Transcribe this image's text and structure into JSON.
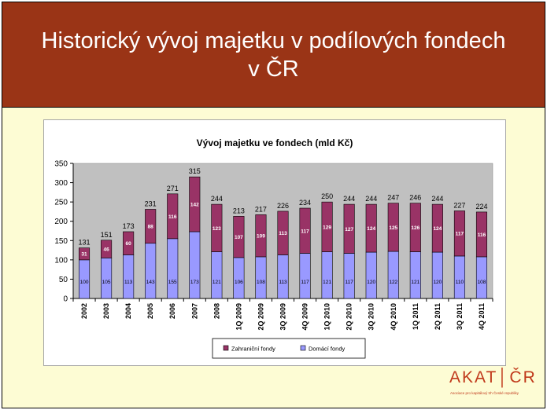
{
  "slide": {
    "title": "Historický vývoj majetku v podílových fondech v ČR",
    "header_color": "#9a3416",
    "background_color": "#fdfcd4"
  },
  "logo": {
    "text": "AKAT│ČR",
    "subtitle": "Asociace pro kapitálový trh České republiky",
    "color": "#c0391b"
  },
  "chart_data": {
    "type": "bar",
    "stacked": true,
    "title": "Vývoj majetku ve fondech (mld Kč)",
    "categories": [
      "2002",
      "2003",
      "2004",
      "2005",
      "2006",
      "2007",
      "2008",
      "1Q 2009",
      "2Q 2009",
      "3Q 2009",
      "4Q 2009",
      "1Q 2010",
      "2Q 2010",
      "3Q 2010",
      "4Q 2010",
      "1Q 2011",
      "2Q 2011",
      "3Q 2011",
      "4Q 2011"
    ],
    "series": [
      {
        "name": "Domácí fondy",
        "color": "#9999ff",
        "values": [
          100,
          105,
          113,
          143,
          155,
          173,
          121,
          106,
          108,
          113,
          117,
          121,
          117,
          120,
          122,
          121,
          120,
          110,
          108
        ]
      },
      {
        "name": "Zahraniční fondy",
        "color": "#993366",
        "values": [
          31,
          46,
          60,
          88,
          116,
          142,
          123,
          107,
          109,
          113,
          117,
          129,
          127,
          124,
          125,
          126,
          124,
          117,
          116
        ]
      }
    ],
    "totals": [
      131,
      151,
      173,
      231,
      271,
      315,
      244,
      213,
      217,
      226,
      234,
      250,
      244,
      244,
      247,
      246,
      244,
      227,
      224
    ],
    "ylim": [
      0,
      350
    ],
    "yticks": [
      0,
      50,
      100,
      150,
      200,
      250,
      300,
      350
    ],
    "grid": false,
    "plot_background": "#c0c0c0",
    "legend_position": "bottom",
    "legend_order": [
      "Zahraniční fondy",
      "Domácí fondy"
    ]
  }
}
